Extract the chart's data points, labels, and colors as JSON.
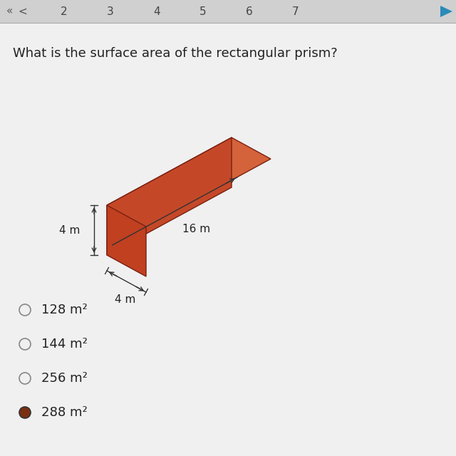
{
  "question": "What is the surface area of the rectangular prism?",
  "background_color": "#f0f0f0",
  "header_bg": "#d0d0d0",
  "options": [
    {
      "text": "128 m²",
      "selected": false
    },
    {
      "text": "144 m²",
      "selected": false
    },
    {
      "text": "256 m²",
      "selected": false
    },
    {
      "text": "288 m²",
      "selected": true
    }
  ],
  "prism": {
    "top_face_color": "#d4623a",
    "front_face_color": "#c44828",
    "right_face_color": "#c04020",
    "left_face_color": "#b83820",
    "edge_color": "#7a2010",
    "dim_height": "4 m",
    "dim_width": "4 m",
    "dim_length": "16 m"
  },
  "header_text": [
    "2",
    "3",
    "4",
    "5",
    "6",
    "7"
  ],
  "radio_color_empty": "#f0f0f0",
  "radio_color_filled": "#7a3010",
  "option_font_size": 13,
  "question_font_size": 13
}
